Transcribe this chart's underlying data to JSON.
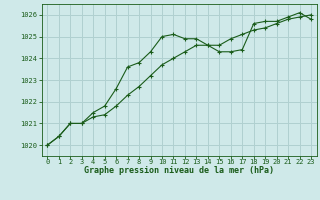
{
  "title": "Graphe pression niveau de la mer (hPa)",
  "bg_color": "#cfe9e9",
  "grid_color": "#b0d0d0",
  "line_color": "#1a5c1a",
  "marker_color": "#1a5c1a",
  "xlim": [
    -0.5,
    23.5
  ],
  "ylim": [
    1019.5,
    1026.5
  ],
  "yticks": [
    1020,
    1021,
    1022,
    1023,
    1024,
    1025,
    1026
  ],
  "xticks": [
    0,
    1,
    2,
    3,
    4,
    5,
    6,
    7,
    8,
    9,
    10,
    11,
    12,
    13,
    14,
    15,
    16,
    17,
    18,
    19,
    20,
    21,
    22,
    23
  ],
  "series1_x": [
    0,
    1,
    2,
    3,
    4,
    5,
    6,
    7,
    8,
    9,
    10,
    11,
    12,
    13,
    14,
    15,
    16,
    17,
    18,
    19,
    20,
    21,
    22,
    23
  ],
  "series1_y": [
    1020.0,
    1020.4,
    1021.0,
    1021.0,
    1021.5,
    1021.8,
    1022.6,
    1023.6,
    1023.8,
    1024.3,
    1025.0,
    1025.1,
    1024.9,
    1024.9,
    1024.6,
    1024.3,
    1024.3,
    1024.4,
    1025.6,
    1025.7,
    1025.7,
    1025.9,
    1026.1,
    1025.8
  ],
  "series2_x": [
    0,
    1,
    2,
    3,
    4,
    5,
    6,
    7,
    8,
    9,
    10,
    11,
    12,
    13,
    14,
    15,
    16,
    17,
    18,
    19,
    20,
    21,
    22,
    23
  ],
  "series2_y": [
    1020.0,
    1020.4,
    1021.0,
    1021.0,
    1021.3,
    1021.4,
    1021.8,
    1022.3,
    1022.7,
    1023.2,
    1023.7,
    1024.0,
    1024.3,
    1024.6,
    1024.6,
    1024.6,
    1024.9,
    1025.1,
    1025.3,
    1025.4,
    1025.6,
    1025.8,
    1025.9,
    1026.0
  ],
  "title_fontsize": 6.0,
  "tick_fontsize": 5.0
}
